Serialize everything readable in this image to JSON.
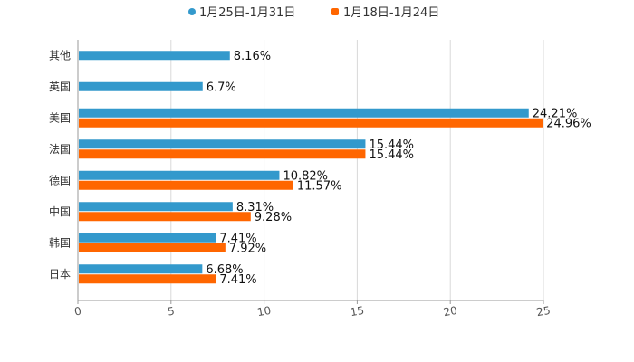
{
  "chart_data": {
    "type": "bar",
    "orientation": "horizontal",
    "categories": [
      "其他",
      "英国",
      "美国",
      "法国",
      "德国",
      "中国",
      "韩国",
      "日本"
    ],
    "series": [
      {
        "name": "1月25日-1月31日",
        "color": "#3399cc",
        "values": [
          8.16,
          6.7,
          24.21,
          15.44,
          10.82,
          8.31,
          7.41,
          6.68
        ],
        "labels": [
          "8.16%",
          "6.7%",
          "24.21%",
          "15.44%",
          "10.82%",
          "8.31%",
          "7.41%",
          "6.68%"
        ]
      },
      {
        "name": "1月18日-1月24日",
        "color": "#ff6600",
        "values": [
          null,
          null,
          24.96,
          15.44,
          11.57,
          9.28,
          7.92,
          7.41
        ],
        "labels": [
          "",
          "",
          "24.96%",
          "15.44%",
          "11.57%",
          "9.28%",
          "7.92%",
          "7.41%"
        ]
      }
    ],
    "xlim": [
      0,
      25
    ],
    "x_ticks": [
      "0",
      "5",
      "10",
      "15",
      "20",
      "25"
    ],
    "grid": true,
    "legend": "top-center",
    "title": "",
    "xlabel": "",
    "ylabel": ""
  }
}
